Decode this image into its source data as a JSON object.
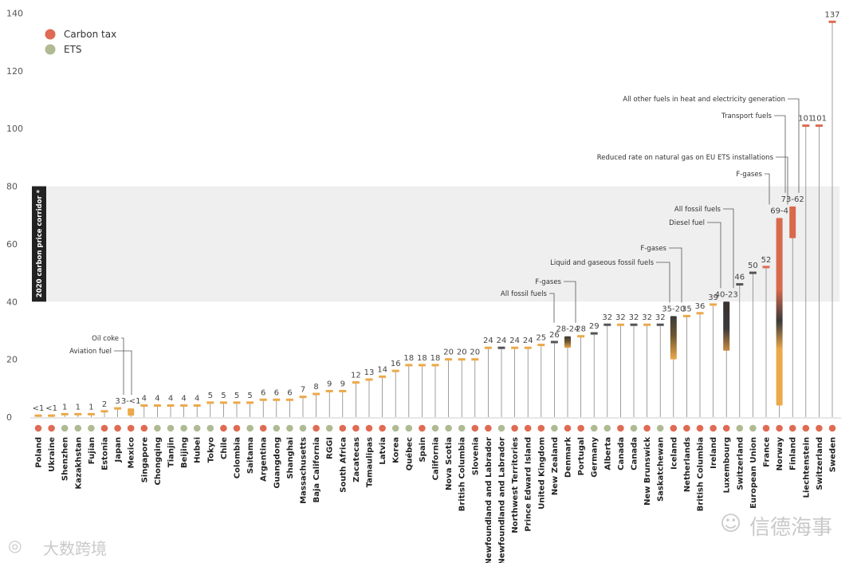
{
  "chart_data": {
    "type": "bar",
    "title": "",
    "ylabel": "",
    "ylim": [
      0,
      140
    ],
    "yticks": [
      0,
      20,
      40,
      60,
      80,
      100,
      120,
      140
    ],
    "corridor": {
      "label": "2020 carbon price corridor *",
      "range": [
        40,
        80
      ]
    },
    "legend": [
      {
        "label": "Carbon tax",
        "color": "#df6b52"
      },
      {
        "label": "ETS",
        "color": "#afba93"
      }
    ],
    "items": [
      {
        "name": "Poland",
        "type": "tax",
        "low": 0.5,
        "high": 0.5,
        "label": "<1"
      },
      {
        "name": "Ukraine",
        "type": "tax",
        "low": 0.5,
        "high": 0.5,
        "label": "<1"
      },
      {
        "name": "Shenzhen",
        "type": "ets",
        "low": 1,
        "high": 1,
        "label": "1"
      },
      {
        "name": "Kazakhstan",
        "type": "ets",
        "low": 1,
        "high": 1,
        "label": "1"
      },
      {
        "name": "Fujian",
        "type": "ets",
        "low": 1,
        "high": 1,
        "label": "1"
      },
      {
        "name": "Estonia",
        "type": "tax",
        "low": 2,
        "high": 2,
        "label": "2"
      },
      {
        "name": "Japan",
        "type": "tax",
        "low": 3,
        "high": 3,
        "label": "3"
      },
      {
        "name": "Mexico",
        "type": "tax",
        "low": 0.5,
        "high": 3,
        "label": "3-<1"
      },
      {
        "name": "Singapore",
        "type": "tax",
        "low": 4,
        "high": 4,
        "label": "4"
      },
      {
        "name": "Chongqing",
        "type": "ets",
        "low": 4,
        "high": 4,
        "label": "4"
      },
      {
        "name": "Tianjin",
        "type": "ets",
        "low": 4,
        "high": 4,
        "label": "4"
      },
      {
        "name": "Beijing",
        "type": "ets",
        "low": 4,
        "high": 4,
        "label": "4"
      },
      {
        "name": "Hubei",
        "type": "ets",
        "low": 4,
        "high": 4,
        "label": "4"
      },
      {
        "name": "Tokyo",
        "type": "ets",
        "low": 5,
        "high": 5,
        "label": "5"
      },
      {
        "name": "Chile",
        "type": "tax",
        "low": 5,
        "high": 5,
        "label": "5"
      },
      {
        "name": "Colombia",
        "type": "tax",
        "low": 5,
        "high": 5,
        "label": "5"
      },
      {
        "name": "Saitama",
        "type": "ets",
        "low": 5,
        "high": 5,
        "label": "5"
      },
      {
        "name": "Argentina",
        "type": "tax",
        "low": 6,
        "high": 6,
        "label": "6"
      },
      {
        "name": "Guangdong",
        "type": "ets",
        "low": 6,
        "high": 6,
        "label": "6"
      },
      {
        "name": "Shanghai",
        "type": "ets",
        "low": 6,
        "high": 6,
        "label": "6"
      },
      {
        "name": "Massachusetts",
        "type": "ets",
        "low": 7,
        "high": 7,
        "label": "7"
      },
      {
        "name": "Baja California",
        "type": "tax",
        "low": 8,
        "high": 8,
        "label": "8"
      },
      {
        "name": "RGGI",
        "type": "ets",
        "low": 9,
        "high": 9,
        "label": "9"
      },
      {
        "name": "South Africa",
        "type": "tax",
        "low": 9,
        "high": 9,
        "label": "9"
      },
      {
        "name": "Zacatecas",
        "type": "tax",
        "low": 12,
        "high": 12,
        "label": "12"
      },
      {
        "name": "Tamaulipas",
        "type": "tax",
        "low": 13,
        "high": 13,
        "label": "13"
      },
      {
        "name": "Latvia",
        "type": "tax",
        "low": 14,
        "high": 14,
        "label": "14"
      },
      {
        "name": "Korea",
        "type": "ets",
        "low": 16,
        "high": 16,
        "label": "16"
      },
      {
        "name": "Québec",
        "type": "ets",
        "low": 18,
        "high": 18,
        "label": "18"
      },
      {
        "name": "Spain",
        "type": "tax",
        "low": 18,
        "high": 18,
        "label": "18"
      },
      {
        "name": "California",
        "type": "ets",
        "low": 18,
        "high": 18,
        "label": "18"
      },
      {
        "name": "Nova Scotia",
        "type": "ets",
        "low": 20,
        "high": 20,
        "label": "20"
      },
      {
        "name": "British Columbia",
        "type": "ets",
        "low": 20,
        "high": 20,
        "label": "20"
      },
      {
        "name": "Slovenia",
        "type": "tax",
        "low": 20,
        "high": 20,
        "label": "20"
      },
      {
        "name": "Newfoundland and Labrador",
        "type": "tax",
        "low": 24,
        "high": 24,
        "label": "24"
      },
      {
        "name": "Newfoundland and Labrador",
        "type": "ets",
        "low": 24,
        "high": 24,
        "label": "24"
      },
      {
        "name": "Northwest Territories",
        "type": "tax",
        "low": 24,
        "high": 24,
        "label": "24"
      },
      {
        "name": "Prince Edward Island",
        "type": "tax",
        "low": 24,
        "high": 24,
        "label": "24"
      },
      {
        "name": "United Kingdom",
        "type": "tax",
        "low": 25,
        "high": 25,
        "label": "25"
      },
      {
        "name": "New Zealand",
        "type": "ets",
        "low": 26,
        "high": 26,
        "label": "26"
      },
      {
        "name": "Denmark",
        "type": "tax",
        "low": 24,
        "high": 28,
        "label": "28-24"
      },
      {
        "name": "Portugal",
        "type": "tax",
        "low": 28,
        "high": 28,
        "label": "28"
      },
      {
        "name": "Germany",
        "type": "ets",
        "low": 29,
        "high": 29,
        "label": "29"
      },
      {
        "name": "Alberta",
        "type": "ets",
        "low": 32,
        "high": 32,
        "label": "32"
      },
      {
        "name": "Canada",
        "type": "tax",
        "low": 32,
        "high": 32,
        "label": "32"
      },
      {
        "name": "Canada",
        "type": "ets",
        "low": 32,
        "high": 32,
        "label": "32"
      },
      {
        "name": "New Brunswick",
        "type": "tax",
        "low": 32,
        "high": 32,
        "label": "32"
      },
      {
        "name": "Saskatchewan",
        "type": "ets",
        "low": 32,
        "high": 32,
        "label": "32"
      },
      {
        "name": "Iceland",
        "type": "tax",
        "low": 20,
        "high": 35,
        "label": "35-20"
      },
      {
        "name": "Netherlands",
        "type": "tax",
        "low": 35,
        "high": 35,
        "label": "35"
      },
      {
        "name": "British Columbia",
        "type": "tax",
        "low": 36,
        "high": 36,
        "label": "36"
      },
      {
        "name": "Ireland",
        "type": "tax",
        "low": 39,
        "high": 39,
        "label": "39"
      },
      {
        "name": "Luxembourg",
        "type": "tax",
        "low": 23,
        "high": 40,
        "label": "40-23"
      },
      {
        "name": "Switzerland",
        "type": "ets",
        "low": 46,
        "high": 46,
        "label": "46"
      },
      {
        "name": "European Union",
        "type": "ets",
        "low": 50,
        "high": 50,
        "label": "50"
      },
      {
        "name": "France",
        "type": "tax",
        "low": 52,
        "high": 52,
        "label": "52"
      },
      {
        "name": "Norway",
        "type": "tax",
        "low": 4,
        "high": 69,
        "label": "69-4"
      },
      {
        "name": "Finland",
        "type": "tax",
        "low": 62,
        "high": 73,
        "label": "73-62"
      },
      {
        "name": "Liechtenstein",
        "type": "tax",
        "low": 101,
        "high": 101,
        "label": "101"
      },
      {
        "name": "Switzerland",
        "type": "tax",
        "low": 101,
        "high": 101,
        "label": "101"
      },
      {
        "name": "Sweden",
        "type": "tax",
        "low": 137,
        "high": 137,
        "label": "137"
      }
    ],
    "annotations": [
      {
        "text": "Oil coke",
        "target": 7
      },
      {
        "text": "Aviation fuel",
        "target": 7
      },
      {
        "text": "All fossil fuels",
        "target": 40
      },
      {
        "text": "F-gases",
        "target": 40
      },
      {
        "text": "Liquid and gaseous fossil fuels",
        "target": 48
      },
      {
        "text": "F-gases",
        "target": 48
      },
      {
        "text": "Diesel fuel",
        "target": 52
      },
      {
        "text": "All fossil fuels",
        "target": 52
      },
      {
        "text": "F-gases",
        "target": 56
      },
      {
        "text": "Reduced rate on natural gas on EU ETS installations",
        "target": 56
      },
      {
        "text": "Transport fuels",
        "target": 57
      },
      {
        "text": "All other fuels in heat and electricity generation",
        "target": 57
      }
    ]
  },
  "watermarks": {
    "right": "信德海事",
    "left": "大数跨境"
  }
}
